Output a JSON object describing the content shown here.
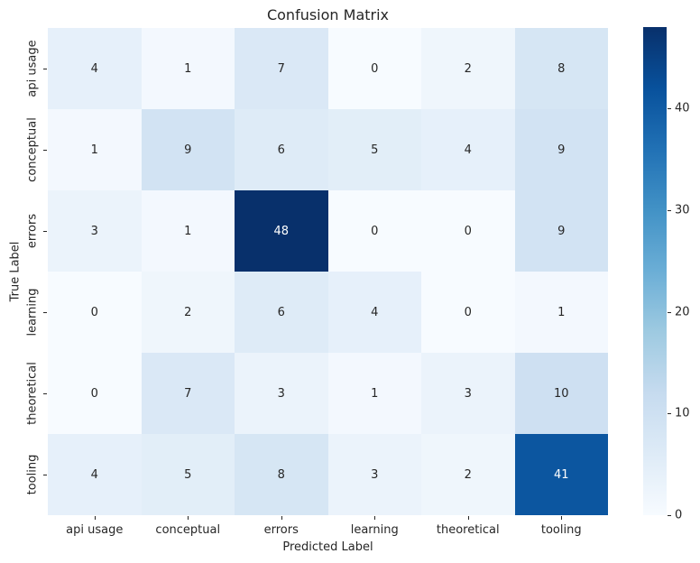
{
  "figure": {
    "title": "Confusion Matrix",
    "xlabel": "Predicted Label",
    "ylabel": "True Label",
    "background": "#ffffff"
  },
  "chart_data": {
    "type": "heatmap",
    "title": "Confusion Matrix",
    "xlabel": "Predicted Label",
    "ylabel": "True Label",
    "x_categories": [
      "api usage",
      "conceptual",
      "errors",
      "learning",
      "theoretical",
      "tooling"
    ],
    "y_categories": [
      "api usage",
      "conceptual",
      "errors",
      "learning",
      "theoretical",
      "tooling"
    ],
    "values": [
      [
        4,
        1,
        7,
        0,
        2,
        8
      ],
      [
        1,
        9,
        6,
        5,
        4,
        9
      ],
      [
        3,
        1,
        48,
        0,
        0,
        9
      ],
      [
        0,
        2,
        6,
        4,
        0,
        1
      ],
      [
        0,
        7,
        3,
        1,
        3,
        10
      ],
      [
        4,
        5,
        8,
        3,
        2,
        41
      ]
    ],
    "annotated": true,
    "vmin": 0,
    "vmax": 48,
    "colormap": "Blues",
    "grid": false,
    "legend_position": "none",
    "colorbar": {
      "position": "right",
      "ticks": [
        0,
        10,
        20,
        30,
        40
      ]
    }
  },
  "colors": {
    "blues_colormap_anchors": [
      {
        "t": 0.0,
        "hex": "#f7fbff"
      },
      {
        "t": 0.125,
        "hex": "#deebf7"
      },
      {
        "t": 0.25,
        "hex": "#c6dbef"
      },
      {
        "t": 0.375,
        "hex": "#9ecae1"
      },
      {
        "t": 0.5,
        "hex": "#6baed6"
      },
      {
        "t": 0.625,
        "hex": "#4292c6"
      },
      {
        "t": 0.75,
        "hex": "#2171b5"
      },
      {
        "t": 0.875,
        "hex": "#08519c"
      },
      {
        "t": 1.0,
        "hex": "#08306b"
      }
    ],
    "annotation_dark": "#262626",
    "annotation_light": "#ffffff",
    "axis_text": "#262626"
  }
}
